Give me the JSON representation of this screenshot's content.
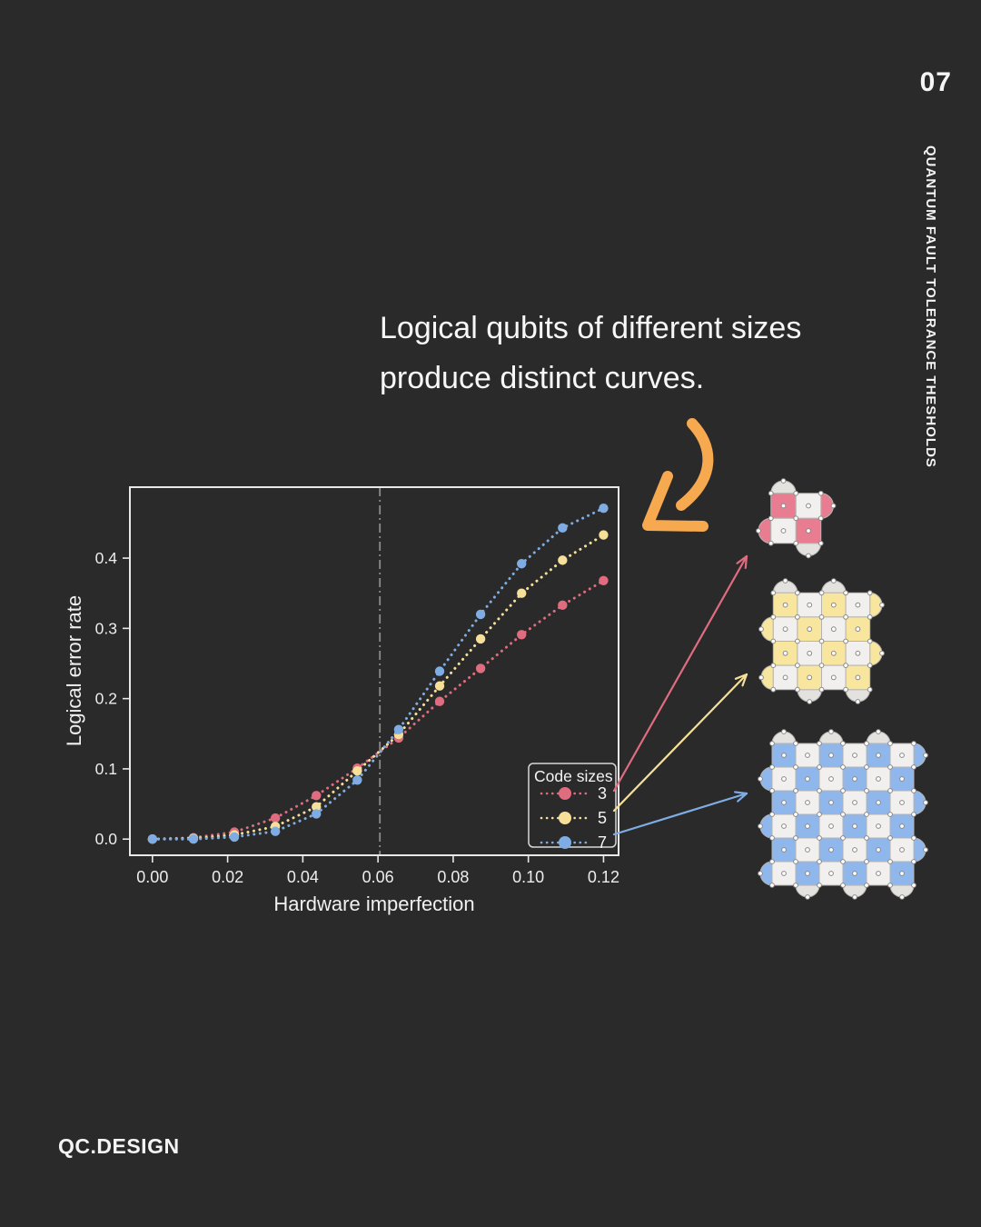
{
  "page": {
    "number": "07",
    "vertical_title": "QUANTUM FAULT TOLERANCE THESHOLDS",
    "brand": "QC.DESIGN"
  },
  "headline": {
    "line1": "Logical qubits of different sizes",
    "line2": "produce distinct curves."
  },
  "colors": {
    "background": "#2A2A2A",
    "text": "#F4F4F4",
    "frame": "#E8E8E8",
    "tick_label": "#EDEDED",
    "threshold_line": "#8C8C8C",
    "legend_border": "#D8D8D8",
    "pink": "#E06C80",
    "yellow": "#F5DF99",
    "blue": "#7FADE3",
    "orange": "#F6A94F",
    "lattice_pink": "#E87D92",
    "lattice_yellow": "#F8E59E",
    "lattice_blue": "#8FB7EC",
    "lattice_light_cell": "#F1F0EE",
    "lattice_lobe_gray": "#E4E2DF",
    "lattice_cell_stroke": "#B5B3B0",
    "qubit_dot_fill": "#FFFFFF",
    "qubit_dot_stroke": "#8A8887"
  },
  "chart_data": {
    "type": "line",
    "x": [
      0.0,
      0.0109,
      0.0218,
      0.0327,
      0.0436,
      0.0545,
      0.0655,
      0.0764,
      0.0873,
      0.0982,
      0.1091,
      0.12
    ],
    "series": [
      {
        "name": "3",
        "color_key": "pink",
        "values": [
          0.0,
          0.002,
          0.01,
          0.03,
          0.062,
          0.101,
          0.144,
          0.196,
          0.243,
          0.291,
          0.333,
          0.368
        ]
      },
      {
        "name": "5",
        "color_key": "yellow",
        "values": [
          0.0,
          0.001,
          0.006,
          0.018,
          0.046,
          0.097,
          0.149,
          0.218,
          0.285,
          0.35,
          0.397,
          0.433
        ]
      },
      {
        "name": "7",
        "color_key": "blue",
        "values": [
          0.0,
          0.0,
          0.003,
          0.011,
          0.036,
          0.084,
          0.156,
          0.239,
          0.32,
          0.392,
          0.443,
          0.471
        ]
      }
    ],
    "xlabel": "Hardware imperfection",
    "ylabel": "Logical error rate",
    "xticks": {
      "values": [
        0.0,
        0.02,
        0.04,
        0.06,
        0.08,
        0.1,
        0.12
      ],
      "labels": [
        "0.00",
        "0.02",
        "0.04",
        "0.06",
        "0.08",
        "0.10",
        "0.12"
      ]
    },
    "yticks": {
      "values": [
        0.0,
        0.1,
        0.2,
        0.3,
        0.4
      ],
      "labels": [
        "0.0",
        "0.1",
        "0.2",
        "0.3",
        "0.4"
      ]
    },
    "xlim": [
      -0.006,
      0.124
    ],
    "ylim": [
      -0.023,
      0.501
    ],
    "threshold_x": 0.0605,
    "grid": false,
    "legend": {
      "title": "Code sizes",
      "position": "lower right",
      "entries": [
        "3",
        "5",
        "7"
      ]
    },
    "line_style": "dotted",
    "marker": "circle"
  },
  "lattices": [
    {
      "label": "3",
      "color_key": "lattice_pink",
      "n": 2
    },
    {
      "label": "5",
      "color_key": "lattice_yellow",
      "n": 4
    },
    {
      "label": "7",
      "color_key": "lattice_blue",
      "n": 6
    }
  ]
}
